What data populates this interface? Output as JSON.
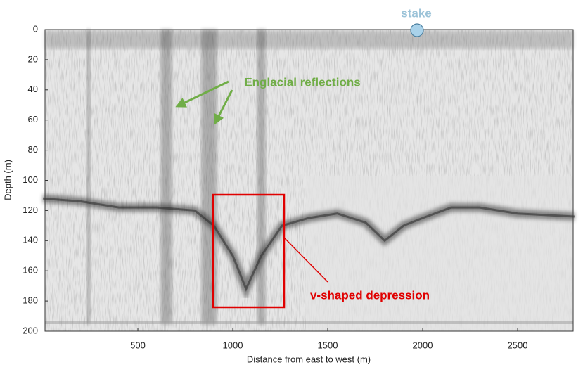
{
  "chart_data": {
    "type": "radargram",
    "xlabel": "Distance from east to west (m)",
    "ylabel": "Depth (m)",
    "xlim": [
      0,
      2800
    ],
    "ylim": [
      0,
      200
    ],
    "y_inverted": true,
    "xticks": [
      500,
      1000,
      1500,
      2000,
      2500
    ],
    "yticks": [
      0,
      20,
      40,
      60,
      80,
      100,
      120,
      140,
      160,
      180,
      200
    ],
    "annotations": {
      "stake": "stake",
      "englacial": "Englacial reflections",
      "depression": "v-shaped depression"
    }
  }
}
